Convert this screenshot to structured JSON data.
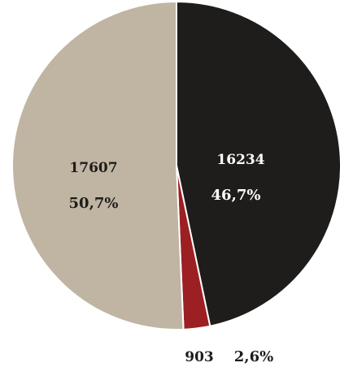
{
  "chart_data": {
    "type": "pie",
    "slices": [
      {
        "value": 16234,
        "value_label": "16234",
        "percent_label": "46,7%",
        "color": "#1f1d1b",
        "label_color": "#ffffff"
      },
      {
        "value": 903,
        "value_label": "903",
        "percent_label": "2,6%",
        "color": "#9c1f23",
        "label_color": "#1f1d1b"
      },
      {
        "value": 17607,
        "value_label": "17607",
        "percent_label": "50,7%",
        "color": "#bfb5a2",
        "label_color": "#1f1d1b"
      }
    ],
    "start_angle": "12 o'clock",
    "direction": "clockwise"
  }
}
